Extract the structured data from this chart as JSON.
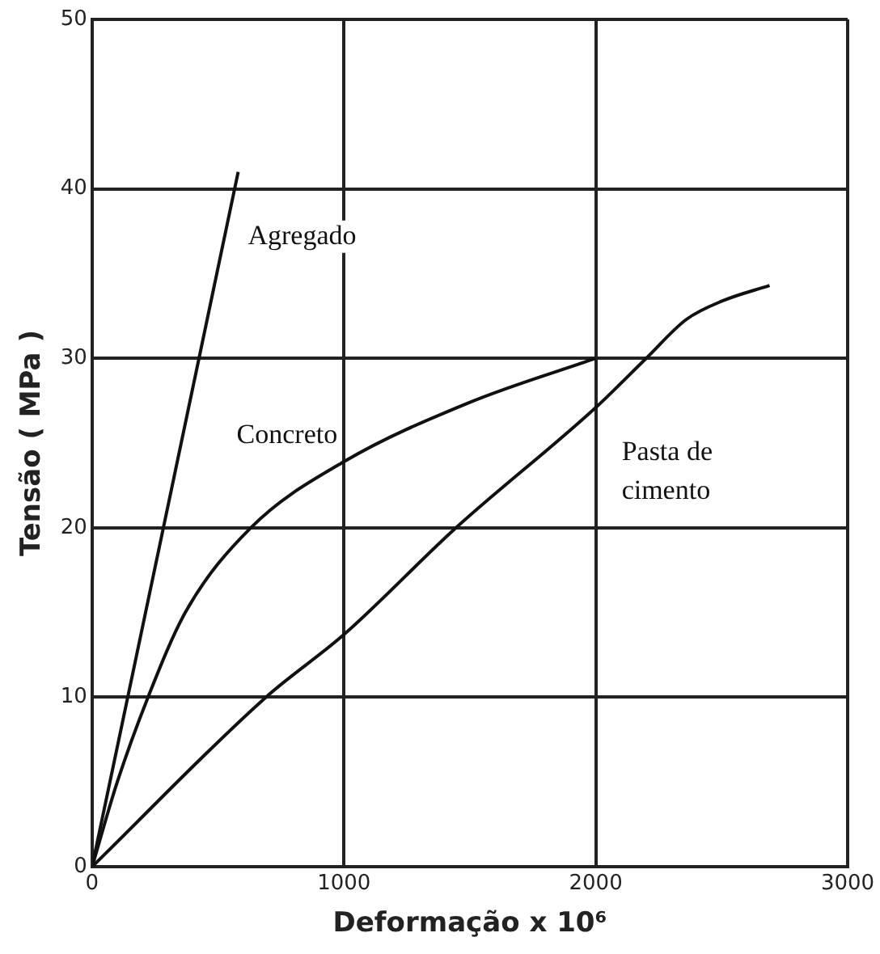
{
  "chart_data": {
    "type": "line",
    "xlabel": "Deformação x 10⁶",
    "ylabel": "Tensão ( MPa )",
    "xlim": [
      0,
      3000
    ],
    "xticks": [
      0,
      1000,
      2000,
      3000
    ],
    "ylim": [
      0,
      50
    ],
    "yticks": [
      0,
      10,
      20,
      30,
      40,
      50
    ],
    "grid": true,
    "legend": false,
    "marker": "none",
    "line_style": "solid",
    "series": [
      {
        "name": "Agregado",
        "color": "#111111",
        "x": [
          0,
          580
        ],
        "values": [
          0,
          41
        ]
      },
      {
        "name": "Concreto",
        "color": "#111111",
        "x": [
          0,
          100,
          222,
          370,
          630,
          1000,
          1500,
          2000
        ],
        "values": [
          0,
          5,
          10,
          15,
          20,
          23.9,
          27.4,
          30
        ]
      },
      {
        "name": "Pasta de cimento",
        "color": "#111111",
        "x": [
          0,
          690,
          1000,
          1445,
          2000,
          2200,
          2360,
          2505,
          2690
        ],
        "values": [
          0,
          10,
          13.7,
          20,
          27.1,
          30,
          32.3,
          33.4,
          34.3
        ]
      }
    ]
  }
}
